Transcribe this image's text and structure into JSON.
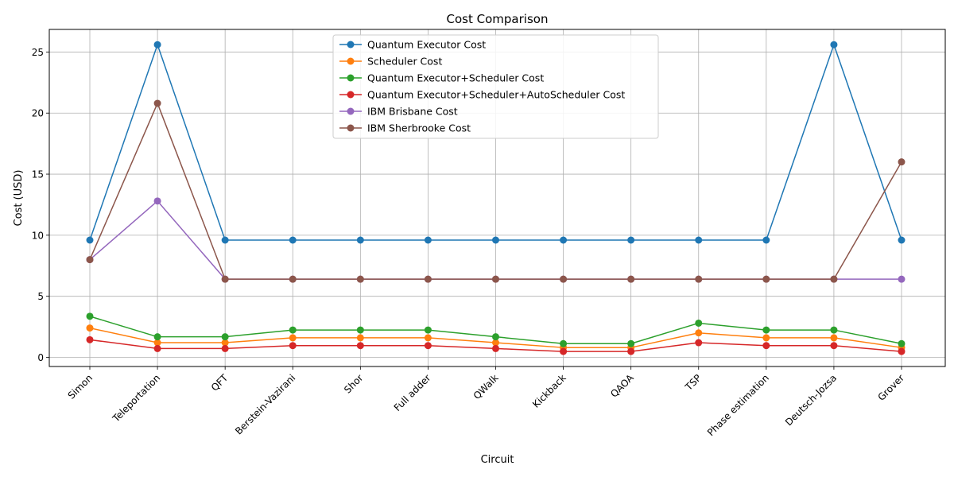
{
  "chart_data": {
    "type": "line",
    "title": "Cost Comparison",
    "xlabel": "Circuit",
    "ylabel": "Cost (USD)",
    "categories": [
      "Simon",
      "Teleportation",
      "QFT",
      "Berstein-Vazirani",
      "Shor",
      "Full adder",
      "QWalk",
      "Kickback",
      "QAOA",
      "TSP",
      "Phase estimation",
      "Deutsch-Jozsa",
      "Grover"
    ],
    "ylim": [
      -0.75,
      26.85
    ],
    "yticks": [
      0,
      5,
      10,
      15,
      20,
      25
    ],
    "grid": true,
    "legend_position": "top-center",
    "series": [
      {
        "name": "Quantum Executor Cost",
        "color": "#1f77b4",
        "values": [
          9.6,
          25.6,
          9.6,
          9.6,
          9.6,
          9.6,
          9.6,
          9.6,
          9.6,
          9.6,
          9.6,
          25.6,
          9.6
        ]
      },
      {
        "name": "Scheduler Cost",
        "color": "#ff7f0e",
        "values": [
          2.4,
          1.2,
          1.2,
          1.6,
          1.6,
          1.6,
          1.2,
          0.8,
          0.8,
          2.0,
          1.6,
          1.6,
          0.8
        ]
      },
      {
        "name": "Quantum Executor+Scheduler Cost",
        "color": "#2ca02c",
        "values": [
          3.36,
          1.68,
          1.68,
          2.24,
          2.24,
          2.24,
          1.68,
          1.12,
          1.12,
          2.8,
          2.24,
          2.24,
          1.12
        ]
      },
      {
        "name": "Quantum Executor+Scheduler+AutoScheduler Cost",
        "color": "#d62728",
        "values": [
          1.44,
          0.72,
          0.72,
          0.96,
          0.96,
          0.96,
          0.72,
          0.48,
          0.48,
          1.2,
          0.96,
          0.96,
          0.48
        ]
      },
      {
        "name": "IBM Brisbane Cost",
        "color": "#9467bd",
        "values": [
          8.0,
          12.8,
          6.4,
          6.4,
          6.4,
          6.4,
          6.4,
          6.4,
          6.4,
          6.4,
          6.4,
          6.4,
          6.4
        ]
      },
      {
        "name": "IBM Sherbrooke Cost",
        "color": "#8c564b",
        "values": [
          8.0,
          20.8,
          6.4,
          6.4,
          6.4,
          6.4,
          6.4,
          6.4,
          6.4,
          6.4,
          6.4,
          6.4,
          16.0
        ]
      }
    ]
  }
}
